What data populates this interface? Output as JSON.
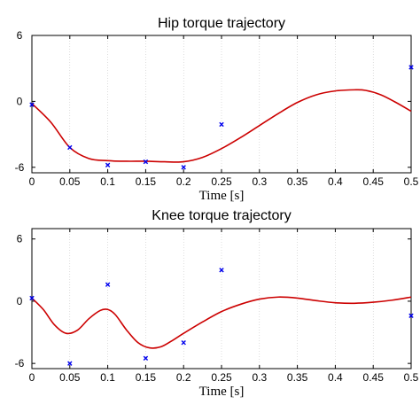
{
  "chart_data": [
    {
      "type": "line",
      "title": "Hip torque trajectory",
      "xlabel": "Time [s]",
      "ylabel": "",
      "xlim": [
        0,
        0.5
      ],
      "ylim": [
        -6.5,
        6
      ],
      "xticks": [
        "0",
        "0.05",
        "0.1",
        "0.15",
        "0.2",
        "0.25",
        "0.3",
        "0.35",
        "0.4",
        "0.45",
        "0.5"
      ],
      "yticks": [
        "6",
        "0",
        "-6"
      ],
      "series": [
        {
          "style": "line",
          "color": "#cc0000",
          "x": [
            0,
            0.025,
            0.05,
            0.075,
            0.1,
            0.125,
            0.15,
            0.175,
            0.2,
            0.225,
            0.25,
            0.275,
            0.3,
            0.325,
            0.35,
            0.375,
            0.4,
            0.425,
            0.44,
            0.46,
            0.48,
            0.5
          ],
          "y": [
            -0.2,
            -1.9,
            -4.2,
            -5.2,
            -5.4,
            -5.45,
            -5.45,
            -5.5,
            -5.5,
            -5.1,
            -4.3,
            -3.3,
            -2.2,
            -1.1,
            -0.1,
            0.6,
            0.95,
            1.05,
            1.0,
            0.6,
            -0.1,
            -0.9
          ]
        },
        {
          "style": "markers",
          "color": "#0000ee",
          "x": [
            0,
            0.05,
            0.1,
            0.15,
            0.2,
            0.25,
            0.5
          ],
          "y": [
            -0.3,
            -4.2,
            -5.8,
            -5.5,
            -6.0,
            -2.1,
            3.1
          ]
        }
      ]
    },
    {
      "type": "line",
      "title": "Knee torque trajectory",
      "xlabel": "Time [s]",
      "ylabel": "",
      "xlim": [
        0,
        0.5
      ],
      "ylim": [
        -6.5,
        7
      ],
      "xticks": [
        "0",
        "0.05",
        "0.1",
        "0.15",
        "0.2",
        "0.25",
        "0.3",
        "0.35",
        "0.4",
        "0.45",
        "0.5"
      ],
      "yticks": [
        "6",
        "0",
        "-6"
      ],
      "series": [
        {
          "style": "line",
          "color": "#cc0000",
          "x": [
            0,
            0.015,
            0.03,
            0.045,
            0.06,
            0.075,
            0.09,
            0.1,
            0.11,
            0.125,
            0.14,
            0.155,
            0.17,
            0.185,
            0.2,
            0.225,
            0.25,
            0.275,
            0.3,
            0.325,
            0.35,
            0.375,
            0.4,
            0.425,
            0.45,
            0.475,
            0.5
          ],
          "y": [
            0.3,
            -0.8,
            -2.3,
            -3.1,
            -2.8,
            -1.7,
            -0.9,
            -0.8,
            -1.3,
            -2.8,
            -4.0,
            -4.5,
            -4.4,
            -3.8,
            -3.1,
            -2.0,
            -1.0,
            -0.3,
            0.2,
            0.4,
            0.3,
            0.05,
            -0.15,
            -0.2,
            -0.1,
            0.1,
            0.4
          ]
        },
        {
          "style": "markers",
          "color": "#0000ee",
          "x": [
            0,
            0.05,
            0.1,
            0.15,
            0.2,
            0.25,
            0.5
          ],
          "y": [
            0.3,
            -6.0,
            1.6,
            -5.5,
            -4.0,
            3.0,
            -1.4
          ]
        }
      ]
    }
  ]
}
